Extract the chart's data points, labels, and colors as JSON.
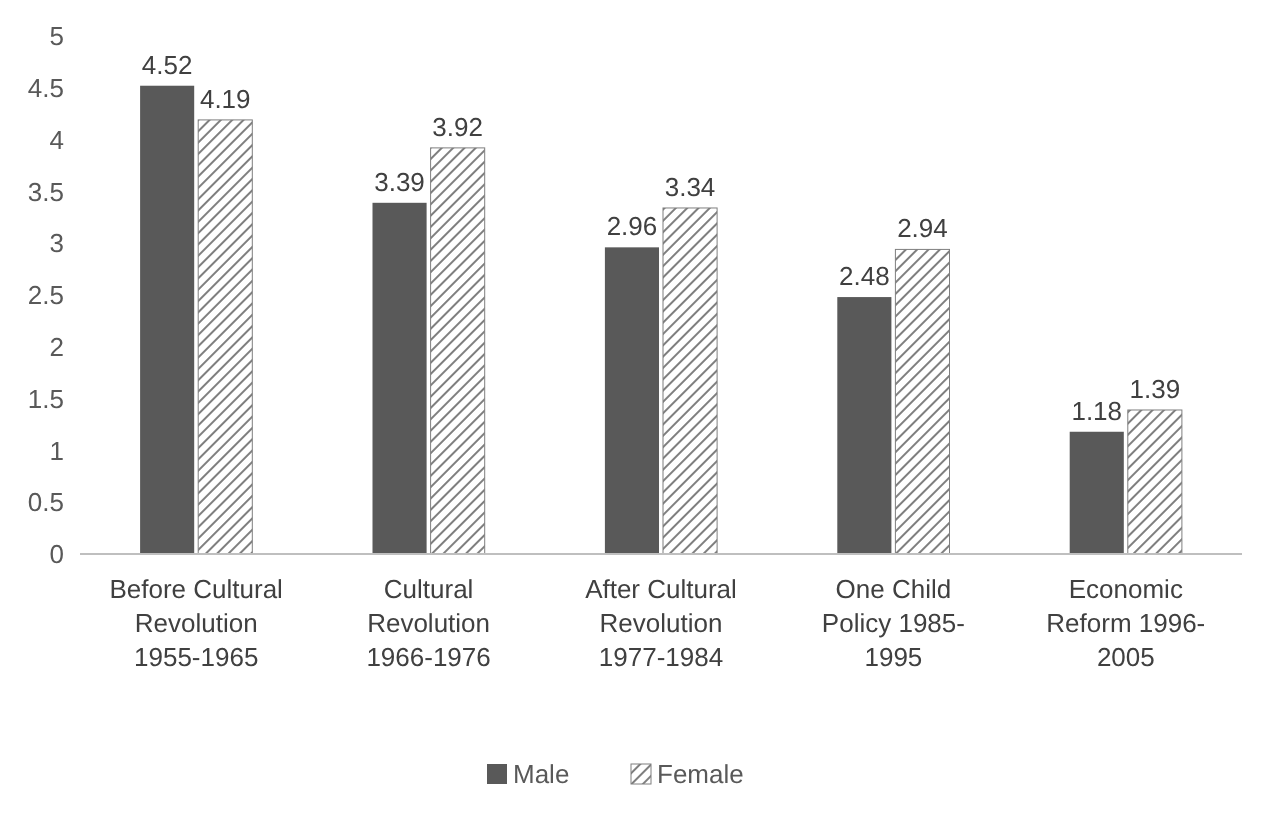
{
  "chart_data": {
    "type": "bar",
    "categories": [
      "Before Cultural\nRevolution\n1955-1965",
      "Cultural\nRevolution\n1966-1976",
      "After Cultural\nRevolution\n1977-1984",
      "One Child\nPolicy 1985-\n1995",
      "Economic\nReform 1996-\n2005"
    ],
    "series": [
      {
        "name": "Male",
        "color": "#595959",
        "values": [
          4.52,
          3.39,
          2.96,
          2.48,
          1.18
        ]
      },
      {
        "name": "Female",
        "color": "#7f7f7f",
        "values": [
          4.19,
          3.92,
          3.34,
          2.94,
          1.39
        ]
      }
    ],
    "ylim": [
      0,
      5
    ],
    "yticks": [
      0,
      0.5,
      1,
      1.5,
      2,
      2.5,
      3,
      3.5,
      4,
      4.5,
      5
    ],
    "data_labels": true,
    "legend": "bottom",
    "grid": false
  }
}
